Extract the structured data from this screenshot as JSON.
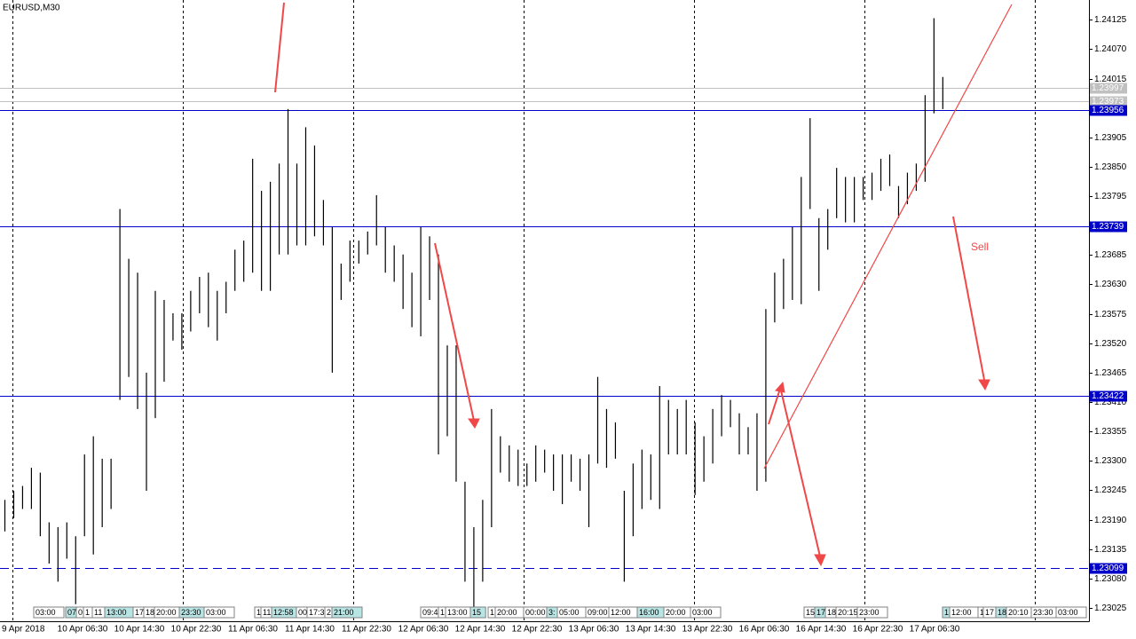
{
  "chart_data": {
    "type": "ohlc",
    "title": "EURUSD,M30",
    "annotation": "Sell",
    "ylim": [
      1.23,
      1.24162
    ],
    "yticks": [
      {
        "value": 1.24125,
        "label": "1.24125"
      },
      {
        "value": 1.2407,
        "label": "1.24070"
      },
      {
        "value": 1.24015,
        "label": "1.24015"
      },
      {
        "value": 1.23905,
        "label": "1.23905"
      },
      {
        "value": 1.2385,
        "label": "1.23850"
      },
      {
        "value": 1.23795,
        "label": "1.23795"
      },
      {
        "value": 1.23685,
        "label": "1.23685"
      },
      {
        "value": 1.2363,
        "label": "1.23630"
      },
      {
        "value": 1.23575,
        "label": "1.23575"
      },
      {
        "value": 1.2352,
        "label": "1.23520"
      },
      {
        "value": 1.23465,
        "label": "1.23465"
      },
      {
        "value": 1.2341,
        "label": "1.23410"
      },
      {
        "value": 1.23355,
        "label": "1.23355"
      },
      {
        "value": 1.233,
        "label": "1.23300"
      },
      {
        "value": 1.23245,
        "label": "1.23245"
      },
      {
        "value": 1.2319,
        "label": "1.23190"
      },
      {
        "value": 1.23135,
        "label": "1.23135"
      },
      {
        "value": 1.2308,
        "label": "1.23080"
      },
      {
        "value": 1.23025,
        "label": "1.23025"
      }
    ],
    "x_labels": [
      "9 Apr 2018",
      "10 Apr 06:30",
      "10 Apr 14:30",
      "10 Apr 22:30",
      "11 Apr 06:30",
      "11 Apr 14:30",
      "11 Apr 22:30",
      "12 Apr 06:30",
      "12 Apr 14:30",
      "12 Apr 22:30",
      "13 Apr 06:30",
      "13 Apr 14:30",
      "13 Apr 22:30",
      "16 Apr 06:30",
      "16 Apr 14:30",
      "16 Apr 22:30",
      "17 Apr 06:30"
    ],
    "levels": [
      {
        "value": 1.23956,
        "label": "1.23956",
        "style": "solid"
      },
      {
        "value": 1.23739,
        "label": "1.23739",
        "style": "solid"
      },
      {
        "value": 1.23422,
        "label": "1.23422",
        "style": "solid"
      },
      {
        "value": 1.23099,
        "label": "1.23099",
        "style": "dashed"
      }
    ],
    "bid_ask": [
      {
        "value": 1.23997,
        "label": "1.23997"
      },
      {
        "value": 1.23973,
        "label": "1.23973"
      }
    ],
    "event_markers": [
      "03:00",
      "07",
      "0",
      "1",
      "11",
      "13:00",
      "17",
      "18",
      "20:00",
      "23:30",
      "03:00",
      "1",
      "11",
      "12:58",
      "00",
      "17:3",
      "2",
      "21:00",
      "09:4",
      "1",
      "13:00",
      "15",
      "1",
      "20:00",
      "00:00",
      "3:",
      "05:00",
      "09:00",
      "12:00",
      "16:00",
      "20:00",
      "03:00",
      "15",
      "17",
      "18",
      "20:15",
      "23:00",
      "1",
      "12:00",
      "1",
      "17",
      "18",
      "20:10",
      "23:30",
      "03:00"
    ],
    "color": "#000000",
    "high": [
      1.23227,
      1.23244,
      1.23253,
      1.23287,
      1.23278,
      1.23185,
      1.23176,
      1.23185,
      1.23159,
      1.23312,
      1.23346,
      1.23304,
      1.23304,
      1.23771,
      1.23678,
      1.23652,
      1.23465,
      1.23618,
      1.23601,
      1.23576,
      1.23576,
      1.23618,
      1.23644,
      1.23652,
      1.23618,
      1.23635,
      1.23695,
      1.23712,
      1.23865,
      1.23805,
      1.23822,
      1.23856,
      1.23958,
      1.23856,
      1.23924,
      1.2389,
      1.23788,
      1.23737,
      1.23669,
      1.23712,
      1.23712,
      1.23729,
      1.23797,
      1.23737,
      1.23703,
      1.23686,
      1.23652,
      1.23737,
      1.2372,
      1.23686,
      1.23516,
      1.23516,
      1.23261,
      1.23176,
      1.23227,
      1.23397,
      1.23346,
      1.23329,
      1.23321,
      1.23295,
      1.23329,
      1.23321,
      1.23312,
      1.23312,
      1.23312,
      1.23304,
      1.23312,
      1.23457,
      1.23397,
      1.23372,
      1.23244,
      1.23295,
      1.23321,
      1.23312,
      1.2344,
      1.23414,
      1.23397,
      1.23414,
      1.23372,
      1.23346,
      1.23397,
      1.23423,
      1.23414,
      1.23389,
      1.23363,
      1.23389,
      1.23584,
      1.23652,
      1.23678,
      1.23737,
      1.23831,
      1.23941,
      1.23754,
      1.23771,
      1.23848,
      1.23831,
      1.23831,
      1.23831,
      1.23839,
      1.23865,
      1.23873,
      1.23814,
      1.23839,
      1.23856,
      1.23984,
      1.24128,
      1.24018
    ],
    "low": [
      1.23168,
      1.23193,
      1.2321,
      1.2321,
      1.23159,
      1.23108,
      1.23074,
      1.23117,
      1.23032,
      1.23159,
      1.23125,
      1.23176,
      1.2321,
      1.23414,
      1.23457,
      1.23397,
      1.23244,
      1.2338,
      1.23448,
      1.23525,
      1.23508,
      1.23542,
      1.23576,
      1.2355,
      1.23525,
      1.23576,
      1.23618,
      1.23635,
      1.23652,
      1.23618,
      1.23618,
      1.23686,
      1.23686,
      1.23703,
      1.23703,
      1.2372,
      1.23703,
      1.23465,
      1.23601,
      1.23635,
      1.23669,
      1.23686,
      1.23703,
      1.23652,
      1.23635,
      1.23584,
      1.2355,
      1.23533,
      1.23601,
      1.23312,
      1.23346,
      1.23261,
      1.23074,
      1.23006,
      1.23074,
      1.23176,
      1.23278,
      1.23261,
      1.23253,
      1.23253,
      1.23261,
      1.23278,
      1.23244,
      1.23219,
      1.23261,
      1.23244,
      1.23176,
      1.23295,
      1.23287,
      1.23304,
      1.23074,
      1.23159,
      1.2321,
      1.23227,
      1.2321,
      1.23312,
      1.23312,
      1.23312,
      1.23236,
      1.23261,
      1.23295,
      1.23346,
      1.23363,
      1.23312,
      1.23312,
      1.23244,
      1.23261,
      1.23559,
      1.23584,
      1.23601,
      1.23593,
      1.23771,
      1.23618,
      1.23695,
      1.23754,
      1.23746,
      1.23746,
      1.23788,
      1.23788,
      1.23805,
      1.23814,
      1.23754,
      1.2378,
      1.23805,
      1.23822,
      1.2395,
      1.23958
    ]
  }
}
